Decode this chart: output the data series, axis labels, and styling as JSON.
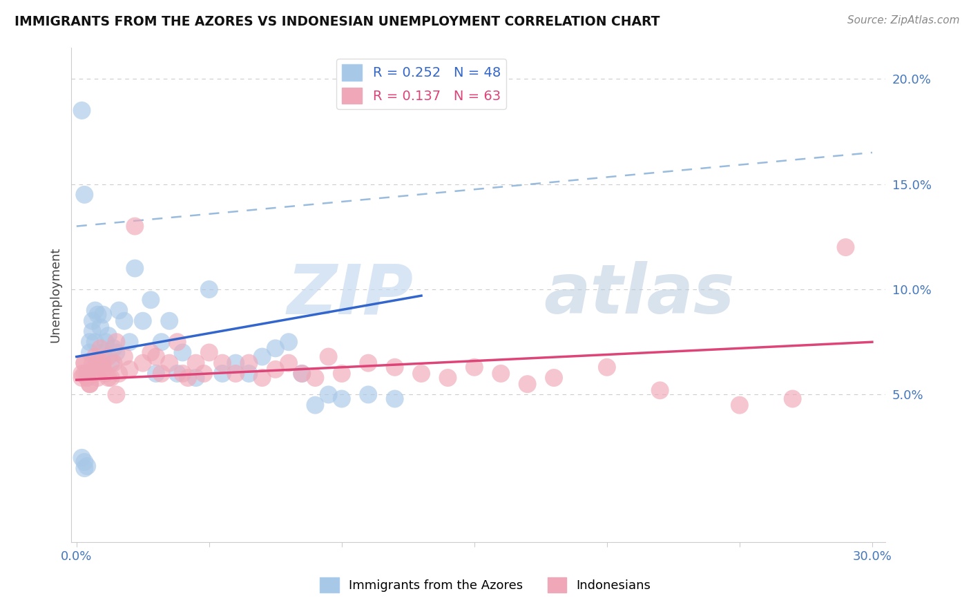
{
  "title": "IMMIGRANTS FROM THE AZORES VS INDONESIAN UNEMPLOYMENT CORRELATION CHART",
  "source_text": "Source: ZipAtlas.com",
  "ylabel": "Unemployment",
  "xlim": [
    -0.002,
    0.305
  ],
  "ylim": [
    -0.02,
    0.215
  ],
  "xticks": [
    0.0,
    0.05,
    0.1,
    0.15,
    0.2,
    0.25,
    0.3
  ],
  "ytick_positions": [
    0.05,
    0.1,
    0.15,
    0.2
  ],
  "ytick_labels": [
    "5.0%",
    "10.0%",
    "15.0%",
    "20.0%"
  ],
  "legend1_r": "0.252",
  "legend1_n": "48",
  "legend2_r": "0.137",
  "legend2_n": "63",
  "legend_bottom_label1": "Immigrants from the Azores",
  "legend_bottom_label2": "Indonesians",
  "blue_color": "#a8c8e8",
  "pink_color": "#f0a8b8",
  "blue_line_color": "#3366cc",
  "pink_line_color": "#dd4477",
  "dashed_line_color": "#99bbdd",
  "blue_scatter_x": [
    0.002,
    0.003,
    0.003,
    0.004,
    0.004,
    0.005,
    0.005,
    0.006,
    0.006,
    0.007,
    0.007,
    0.008,
    0.008,
    0.009,
    0.01,
    0.01,
    0.011,
    0.012,
    0.013,
    0.014,
    0.015,
    0.016,
    0.018,
    0.02,
    0.022,
    0.025,
    0.028,
    0.03,
    0.032,
    0.035,
    0.038,
    0.04,
    0.045,
    0.05,
    0.055,
    0.06,
    0.065,
    0.07,
    0.075,
    0.08,
    0.085,
    0.09,
    0.095,
    0.1,
    0.11,
    0.12,
    0.002,
    0.003
  ],
  "blue_scatter_y": [
    0.185,
    0.015,
    0.018,
    0.016,
    0.06,
    0.075,
    0.07,
    0.085,
    0.08,
    0.09,
    0.075,
    0.088,
    0.065,
    0.082,
    0.07,
    0.088,
    0.075,
    0.078,
    0.065,
    0.072,
    0.07,
    0.09,
    0.085,
    0.075,
    0.11,
    0.085,
    0.095,
    0.06,
    0.075,
    0.085,
    0.06,
    0.07,
    0.058,
    0.1,
    0.06,
    0.065,
    0.06,
    0.068,
    0.072,
    0.075,
    0.06,
    0.045,
    0.05,
    0.048,
    0.05,
    0.048,
    0.02,
    0.145
  ],
  "pink_scatter_x": [
    0.002,
    0.003,
    0.004,
    0.005,
    0.006,
    0.007,
    0.008,
    0.009,
    0.01,
    0.011,
    0.012,
    0.013,
    0.014,
    0.015,
    0.016,
    0.018,
    0.02,
    0.022,
    0.025,
    0.028,
    0.03,
    0.032,
    0.035,
    0.038,
    0.04,
    0.042,
    0.045,
    0.048,
    0.05,
    0.055,
    0.06,
    0.065,
    0.07,
    0.075,
    0.08,
    0.085,
    0.09,
    0.095,
    0.1,
    0.11,
    0.12,
    0.13,
    0.14,
    0.15,
    0.16,
    0.17,
    0.18,
    0.2,
    0.22,
    0.25,
    0.27,
    0.29,
    0.002,
    0.003,
    0.003,
    0.004,
    0.005,
    0.006,
    0.007,
    0.008,
    0.01,
    0.012,
    0.015
  ],
  "pink_scatter_y": [
    0.06,
    0.065,
    0.058,
    0.055,
    0.062,
    0.068,
    0.058,
    0.072,
    0.065,
    0.06,
    0.068,
    0.058,
    0.065,
    0.075,
    0.06,
    0.068,
    0.062,
    0.13,
    0.065,
    0.07,
    0.068,
    0.06,
    0.065,
    0.075,
    0.06,
    0.058,
    0.065,
    0.06,
    0.07,
    0.065,
    0.06,
    0.065,
    0.058,
    0.062,
    0.065,
    0.06,
    0.058,
    0.068,
    0.06,
    0.065,
    0.063,
    0.06,
    0.058,
    0.063,
    0.06,
    0.055,
    0.058,
    0.063,
    0.052,
    0.045,
    0.048,
    0.12,
    0.058,
    0.065,
    0.06,
    0.058,
    0.055,
    0.065,
    0.06,
    0.065,
    0.062,
    0.058,
    0.05
  ],
  "blue_line_x_start": 0.0,
  "blue_line_x_end": 0.13,
  "blue_line_y_start": 0.068,
  "blue_line_y_end": 0.097,
  "pink_line_x_start": 0.0,
  "pink_line_x_end": 0.3,
  "pink_line_y_start": 0.057,
  "pink_line_y_end": 0.075,
  "dashed_line_x_start": 0.0,
  "dashed_line_x_end": 0.3,
  "dashed_line_y_start": 0.13,
  "dashed_line_y_end": 0.165
}
